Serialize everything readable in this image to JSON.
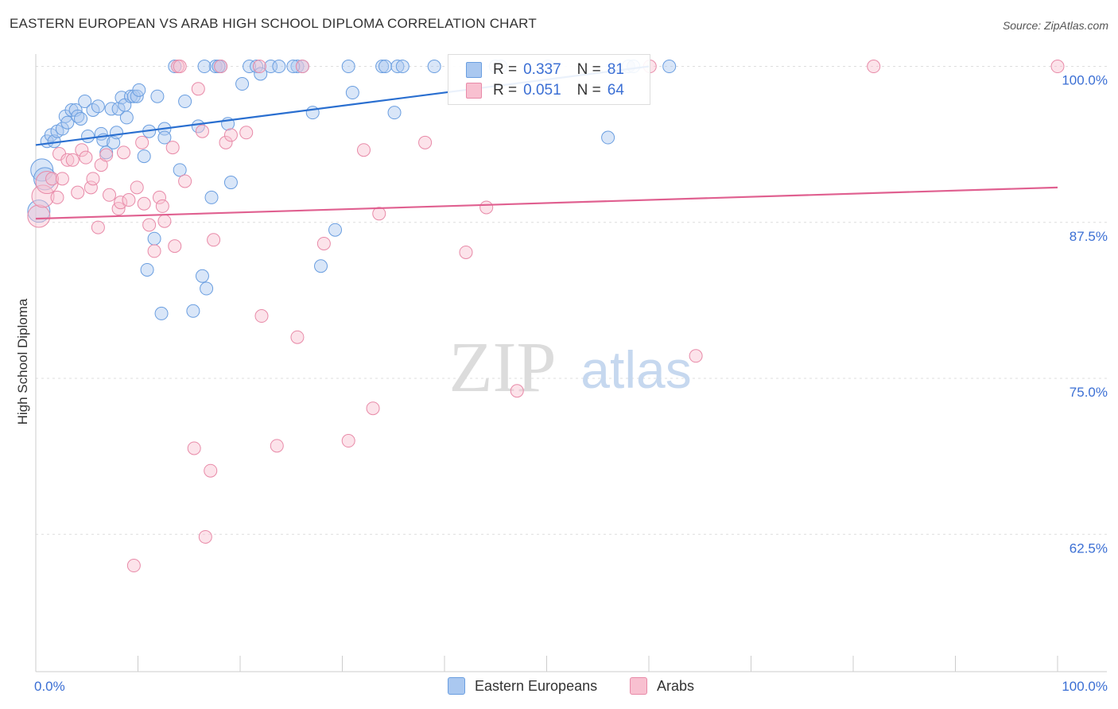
{
  "title": "EASTERN EUROPEAN VS ARAB HIGH SCHOOL DIPLOMA CORRELATION CHART",
  "source": "Source: ZipAtlas.com",
  "watermark": {
    "zip": "ZIP",
    "atlas": "atlas"
  },
  "legend": {
    "rows": [
      {
        "r_label": "R =",
        "r_value": "0.337",
        "n_label": "N =",
        "n_value": "81",
        "color": "#aac8f0",
        "border": "#6a9ee0"
      },
      {
        "r_label": "R =",
        "r_value": "0.051",
        "n_label": "N =",
        "n_value": "64",
        "color": "#f8c0d0",
        "border": "#e88aa8"
      }
    ]
  },
  "bottom_legend": {
    "eastern": "Eastern Europeans",
    "arabs": "Arabs"
  },
  "chart_data": {
    "type": "scatter",
    "title": "EASTERN EUROPEAN VS ARAB HIGH SCHOOL DIPLOMA CORRELATION CHART",
    "xlabel": "",
    "ylabel": "High School Diploma",
    "xlim": [
      0,
      100
    ],
    "ylim": [
      51.5,
      101.5
    ],
    "x_tick_labels": [
      {
        "value": 0,
        "label": "0.0%"
      },
      {
        "value": 100,
        "label": "100.0%"
      }
    ],
    "y_ticks": [
      {
        "value": 100,
        "label": "100.0%"
      },
      {
        "value": 87.5,
        "label": "87.5%"
      },
      {
        "value": 75,
        "label": "75.0%"
      },
      {
        "value": 62.5,
        "label": "62.5%"
      }
    ],
    "series": [
      {
        "name": "Eastern Europeans",
        "color": "#aac8f0",
        "stroke": "#6a9ee0",
        "line_color": "#2a6fd0",
        "trend": {
          "x": [
            0,
            60
          ],
          "y": [
            93.7,
            100.0
          ]
        },
        "points": [
          [
            0.6,
            91.7
          ],
          [
            0.9,
            91.0
          ],
          [
            1.1,
            94.0
          ],
          [
            1.5,
            94.5
          ],
          [
            1.8,
            94.0
          ],
          [
            2.1,
            94.8
          ],
          [
            2.6,
            95.0
          ],
          [
            2.9,
            96.0
          ],
          [
            3.1,
            95.5
          ],
          [
            3.5,
            96.5
          ],
          [
            3.9,
            96.5
          ],
          [
            4.1,
            96.0
          ],
          [
            4.4,
            95.8
          ],
          [
            4.8,
            97.2
          ],
          [
            5.1,
            94.4
          ],
          [
            5.6,
            96.5
          ],
          [
            6.1,
            96.8
          ],
          [
            6.4,
            94.6
          ],
          [
            6.6,
            94.1
          ],
          [
            6.9,
            93.1
          ],
          [
            7.4,
            96.6
          ],
          [
            7.6,
            93.9
          ],
          [
            7.9,
            94.7
          ],
          [
            8.1,
            96.6
          ],
          [
            8.4,
            97.5
          ],
          [
            8.7,
            96.9
          ],
          [
            8.9,
            95.9
          ],
          [
            9.3,
            97.6
          ],
          [
            9.6,
            97.6
          ],
          [
            9.9,
            97.6
          ],
          [
            10.1,
            98.1
          ],
          [
            10.6,
            92.8
          ],
          [
            10.9,
            83.7
          ],
          [
            11.1,
            94.8
          ],
          [
            11.6,
            86.2
          ],
          [
            11.9,
            97.6
          ],
          [
            12.3,
            80.2
          ],
          [
            12.6,
            95.0
          ],
          [
            12.6,
            94.3
          ],
          [
            14.1,
            91.7
          ],
          [
            14.6,
            97.2
          ],
          [
            15.4,
            80.4
          ],
          [
            15.9,
            95.2
          ],
          [
            16.3,
            83.2
          ],
          [
            16.7,
            82.2
          ],
          [
            17.2,
            89.5
          ],
          [
            17.6,
            100.0
          ],
          [
            18.1,
            100.0
          ],
          [
            18.8,
            95.4
          ],
          [
            19.1,
            90.7
          ],
          [
            20.2,
            98.6
          ],
          [
            20.9,
            100.0
          ],
          [
            21.6,
            100.0
          ],
          [
            22.0,
            99.4
          ],
          [
            23.0,
            100.0
          ],
          [
            23.8,
            100.0
          ],
          [
            25.6,
            100.0
          ],
          [
            26.1,
            100.0
          ],
          [
            27.1,
            96.3
          ],
          [
            27.9,
            84.0
          ],
          [
            29.3,
            86.9
          ],
          [
            30.6,
            100.0
          ],
          [
            31.0,
            97.9
          ],
          [
            33.9,
            100.0
          ],
          [
            34.2,
            100.0
          ],
          [
            35.4,
            100.0
          ],
          [
            35.1,
            96.3
          ],
          [
            35.9,
            100.0
          ],
          [
            39.0,
            100.0
          ],
          [
            45.0,
            100.0
          ],
          [
            45.5,
            100.0
          ],
          [
            50.1,
            100.0
          ],
          [
            56.0,
            94.3
          ],
          [
            58.0,
            100.0
          ],
          [
            58.5,
            100.0
          ],
          [
            62.0,
            100.0
          ],
          [
            13.6,
            100.0
          ],
          [
            16.5,
            100.0
          ],
          [
            17.9,
            100.0
          ],
          [
            25.2,
            100.0
          ],
          [
            0.3,
            88.4
          ]
        ]
      },
      {
        "name": "Arabs",
        "color": "#f8c0d0",
        "stroke": "#e88aa8",
        "line_color": "#e06090",
        "trend": {
          "x": [
            0,
            100
          ],
          "y": [
            87.8,
            90.3
          ]
        },
        "points": [
          [
            0.3,
            88.0
          ],
          [
            0.7,
            89.6
          ],
          [
            1.1,
            90.7
          ],
          [
            1.6,
            91.0
          ],
          [
            2.1,
            89.5
          ],
          [
            2.3,
            93.0
          ],
          [
            2.6,
            91.0
          ],
          [
            3.1,
            92.5
          ],
          [
            3.6,
            92.5
          ],
          [
            4.1,
            89.9
          ],
          [
            4.5,
            93.3
          ],
          [
            4.9,
            92.7
          ],
          [
            5.4,
            90.3
          ],
          [
            5.6,
            91.0
          ],
          [
            6.1,
            87.1
          ],
          [
            6.4,
            92.1
          ],
          [
            6.9,
            92.9
          ],
          [
            7.2,
            89.7
          ],
          [
            8.1,
            88.6
          ],
          [
            8.3,
            89.1
          ],
          [
            8.6,
            93.1
          ],
          [
            9.1,
            89.3
          ],
          [
            9.6,
            60.0
          ],
          [
            9.9,
            90.3
          ],
          [
            10.4,
            93.9
          ],
          [
            10.6,
            89.0
          ],
          [
            11.1,
            87.3
          ],
          [
            11.6,
            85.2
          ],
          [
            12.1,
            89.5
          ],
          [
            12.4,
            88.8
          ],
          [
            12.6,
            87.6
          ],
          [
            13.4,
            93.5
          ],
          [
            13.6,
            85.6
          ],
          [
            13.9,
            100.0
          ],
          [
            14.1,
            100.0
          ],
          [
            14.6,
            90.8
          ],
          [
            15.5,
            69.4
          ],
          [
            15.9,
            98.2
          ],
          [
            16.3,
            94.8
          ],
          [
            16.6,
            62.3
          ],
          [
            17.1,
            67.6
          ],
          [
            17.4,
            86.1
          ],
          [
            18.1,
            100.0
          ],
          [
            18.6,
            93.9
          ],
          [
            19.1,
            94.5
          ],
          [
            20.6,
            94.7
          ],
          [
            21.9,
            100.0
          ],
          [
            22.1,
            80.0
          ],
          [
            23.6,
            69.6
          ],
          [
            25.6,
            78.3
          ],
          [
            26.1,
            100.0
          ],
          [
            28.2,
            85.8
          ],
          [
            30.6,
            70.0
          ],
          [
            32.1,
            93.3
          ],
          [
            33.0,
            72.6
          ],
          [
            33.6,
            88.2
          ],
          [
            38.1,
            93.9
          ],
          [
            42.1,
            85.1
          ],
          [
            44.1,
            88.7
          ],
          [
            47.1,
            74.0
          ],
          [
            60.1,
            100.0
          ],
          [
            64.6,
            76.8
          ],
          [
            82.0,
            100.0
          ],
          [
            100.0,
            100.0
          ]
        ]
      }
    ]
  }
}
